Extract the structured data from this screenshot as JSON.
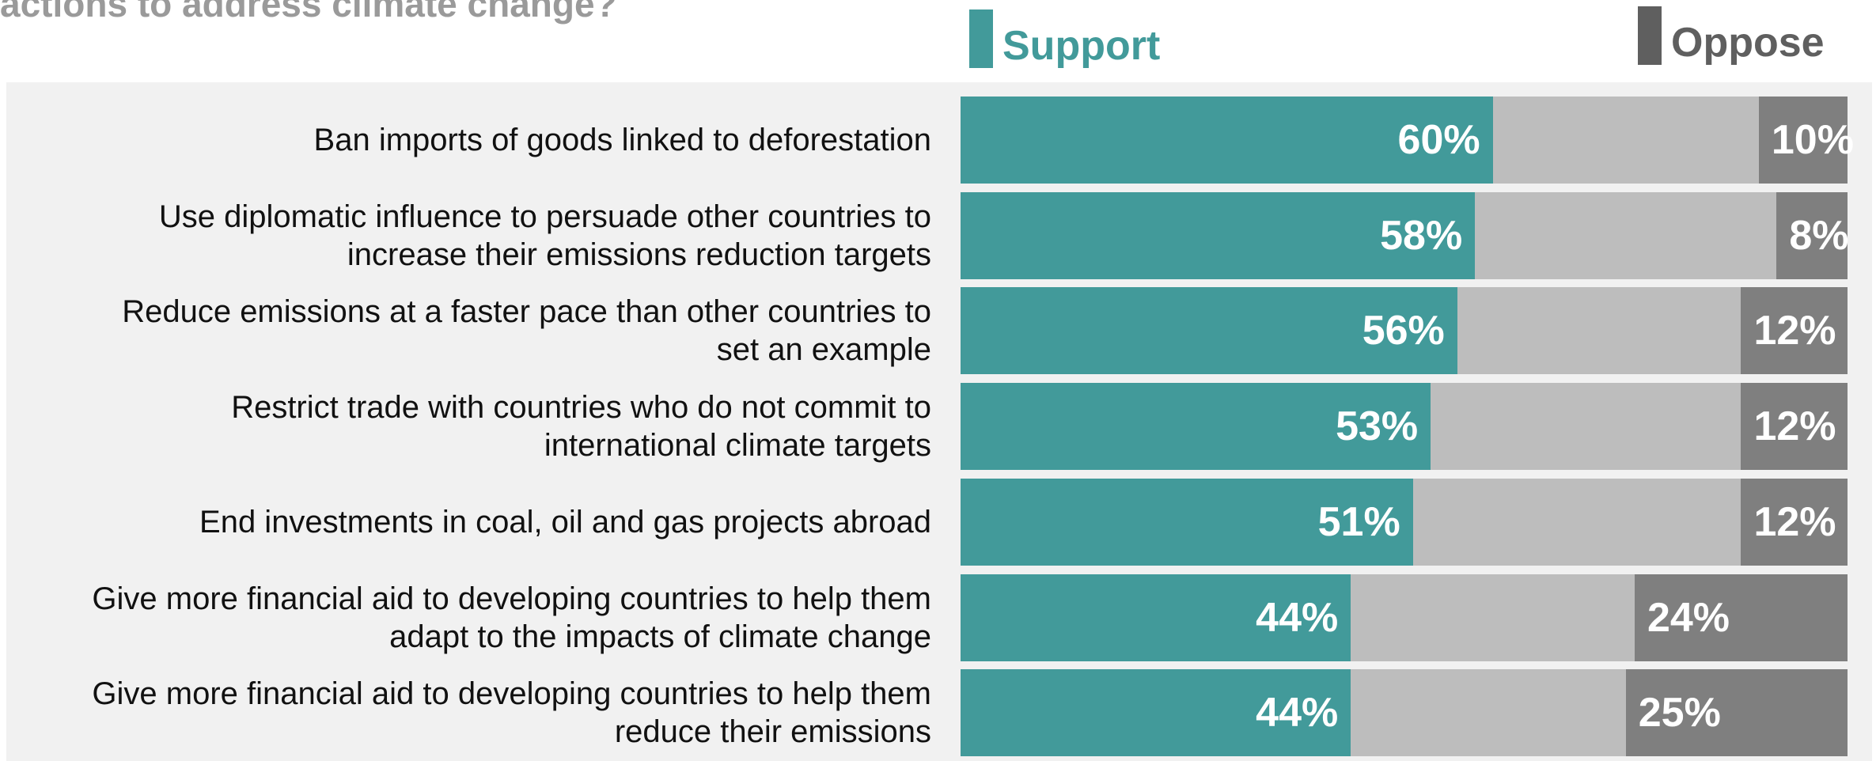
{
  "title": "actions to address climate change?",
  "chart_data": {
    "type": "bar",
    "orientation": "horizontal",
    "stacked": true,
    "title": "actions to address climate change?",
    "categories": [
      "Ban imports of goods linked to deforestation",
      "Use diplomatic influence to persuade other countries to increase their emissions reduction targets",
      "Reduce emissions at a faster pace than other countries to set an example",
      "Restrict trade with countries who do not commit to international climate targets",
      "End investments in coal, oil and gas projects abroad",
      "Give more financial aid to developing countries to help them adapt to the impacts of climate change",
      "Give more financial aid to developing countries to help them reduce their emissions"
    ],
    "category_lines": [
      [
        "Ban imports of goods linked to deforestation"
      ],
      [
        "Use diplomatic influence to persuade other countries to",
        "increase their emissions reduction targets"
      ],
      [
        "Reduce emissions at a faster pace than other countries to",
        "set an example"
      ],
      [
        "Restrict trade with countries who do not commit to",
        "international climate targets"
      ],
      [
        "End investments in coal, oil and gas projects abroad"
      ],
      [
        "Give more financial aid to developing countries to help them",
        "adapt to the impacts of climate change"
      ],
      [
        "Give more financial aid to developing countries to help them",
        "reduce their emissions"
      ]
    ],
    "series": [
      {
        "name": "Support",
        "color": "#429a9a",
        "values": [
          60,
          58,
          56,
          53,
          51,
          44,
          44
        ],
        "labels": [
          "60%",
          "58%",
          "56%",
          "53%",
          "51%",
          "44%",
          "44%"
        ]
      },
      {
        "name": "",
        "color": "#bdbdbd",
        "values": [
          30,
          34,
          32,
          35,
          37,
          32,
          31
        ]
      },
      {
        "name": "Oppose",
        "color": "#7f7f7f",
        "values": [
          10,
          8,
          12,
          12,
          12,
          24,
          25
        ],
        "labels": [
          "10%",
          "8%",
          "12%",
          "12%",
          "12%",
          "24%",
          "25%"
        ]
      }
    ],
    "xlim": [
      0,
      100
    ],
    "grid": false,
    "legend_position": "top"
  },
  "legend": {
    "support": {
      "label": "Support",
      "color": "#429a9a",
      "text_color": "#429a9a"
    },
    "oppose": {
      "label": "Oppose",
      "color": "#5f5f5f",
      "text_color": "#5f5f5f"
    }
  }
}
